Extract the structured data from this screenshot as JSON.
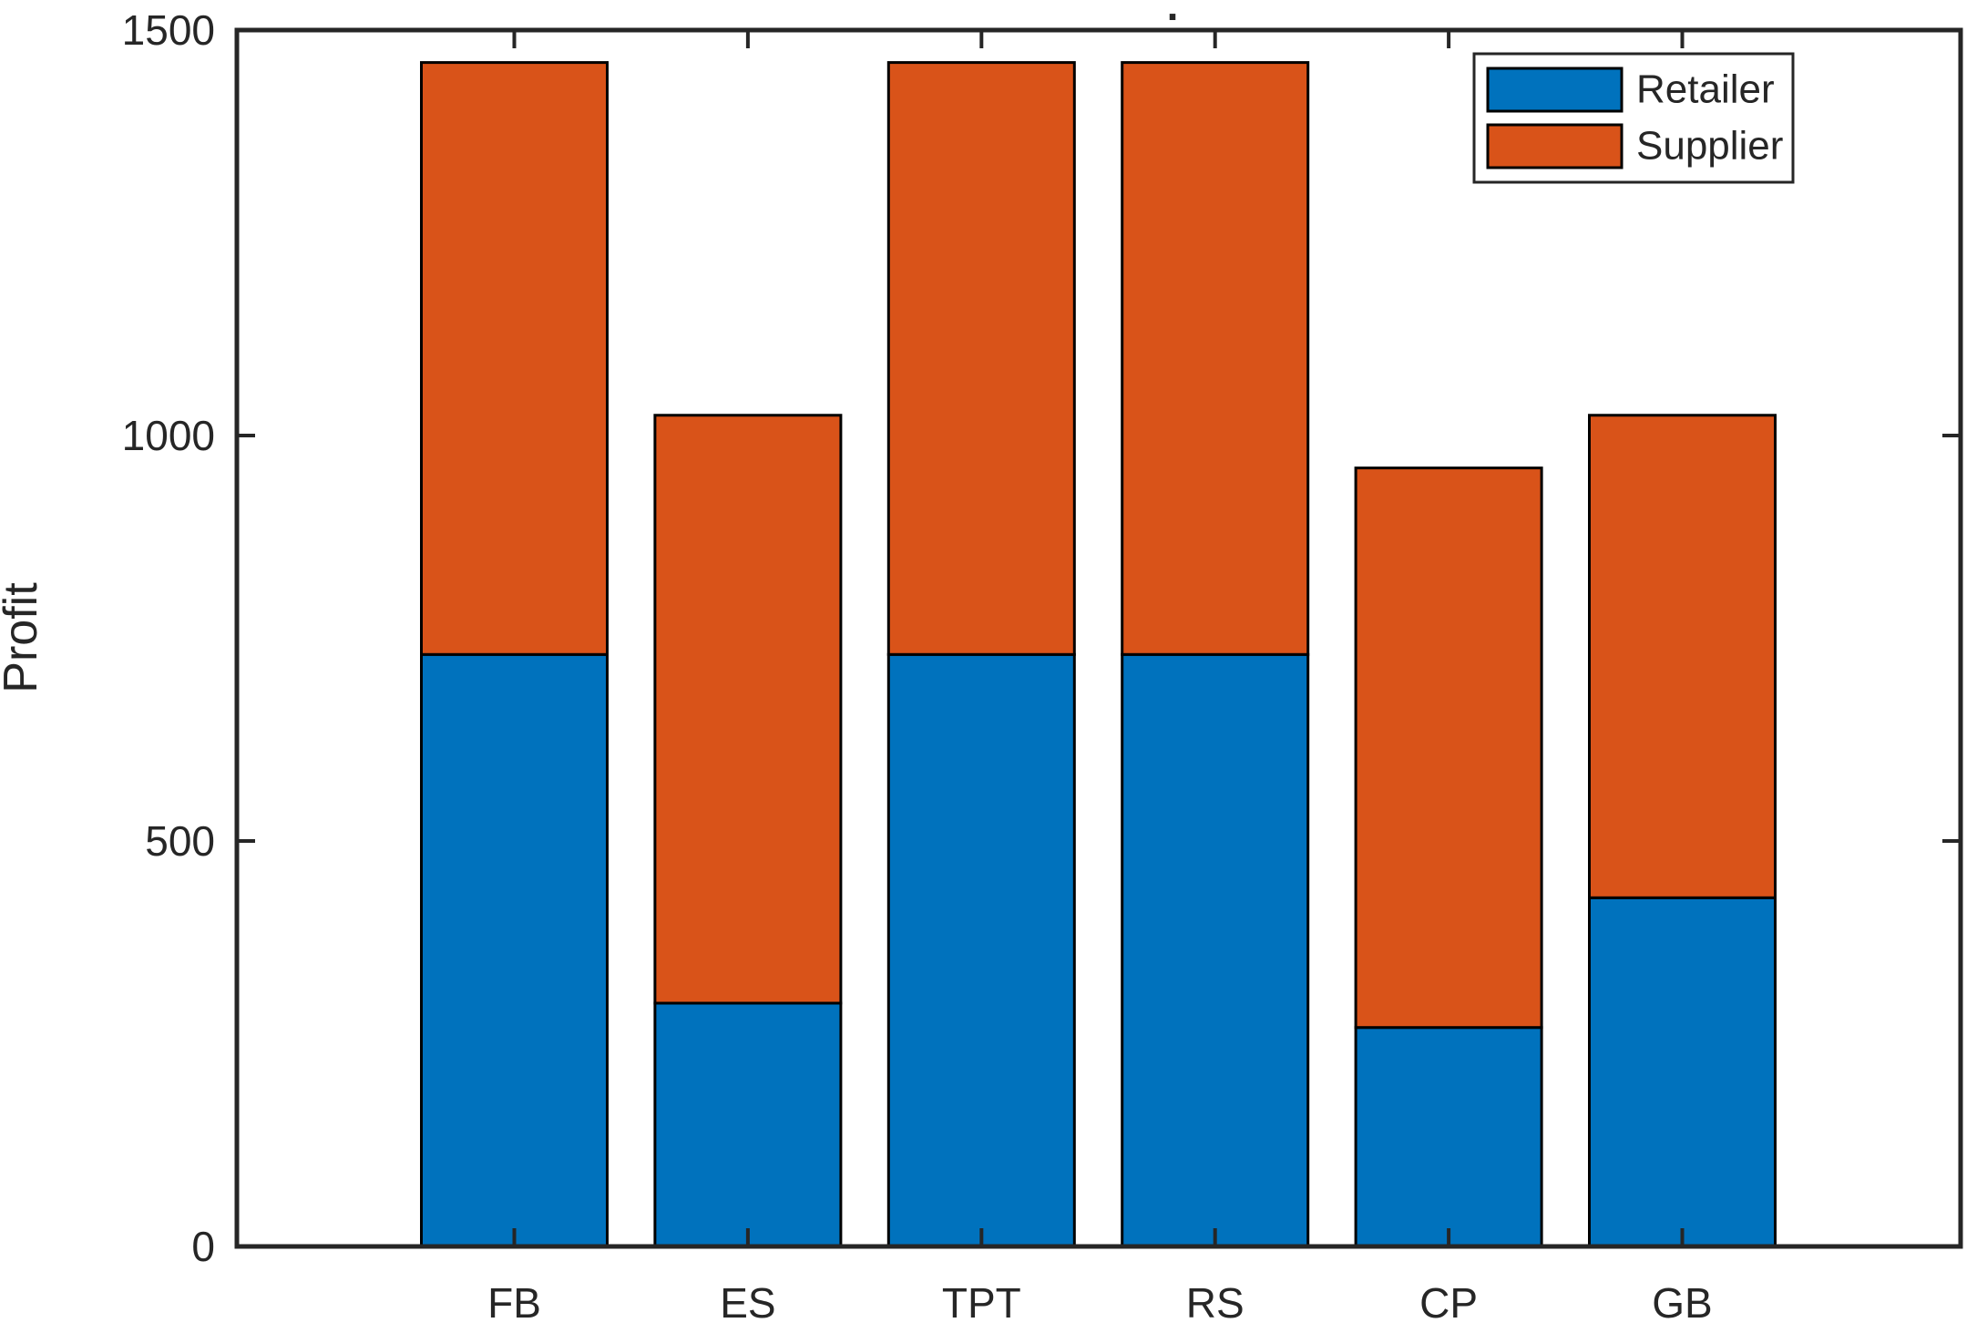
{
  "figure": {
    "title": ".",
    "ylabel": "Profit"
  },
  "chart_data": {
    "type": "bar",
    "stacked": true,
    "orientation": "vertical",
    "title": ".",
    "xlabel": "",
    "ylabel": "Profit",
    "categories": [
      "FB",
      "ES",
      "TPT",
      "RS",
      "CP",
      "GB"
    ],
    "series": [
      {
        "name": "Retailer",
        "color": "#0072BD",
        "values": [
          730,
          300,
          730,
          730,
          270,
          430
        ]
      },
      {
        "name": "Supplier",
        "color": "#D95319",
        "values": [
          730,
          725,
          730,
          730,
          690,
          595
        ]
      }
    ],
    "stack_totals": [
      1460,
      1025,
      1460,
      1460,
      960,
      1025
    ],
    "ylim": [
      0,
      1500
    ],
    "yticks": [
      0,
      500,
      1000,
      1500
    ],
    "ytick_labels": [
      "0",
      "500",
      "1000",
      "1500"
    ],
    "grid": false,
    "bar_edge_color": "#000000",
    "axis_color": "#262626",
    "legend": {
      "position": "top-right",
      "entries": [
        "Retailer",
        "Supplier"
      ]
    }
  }
}
